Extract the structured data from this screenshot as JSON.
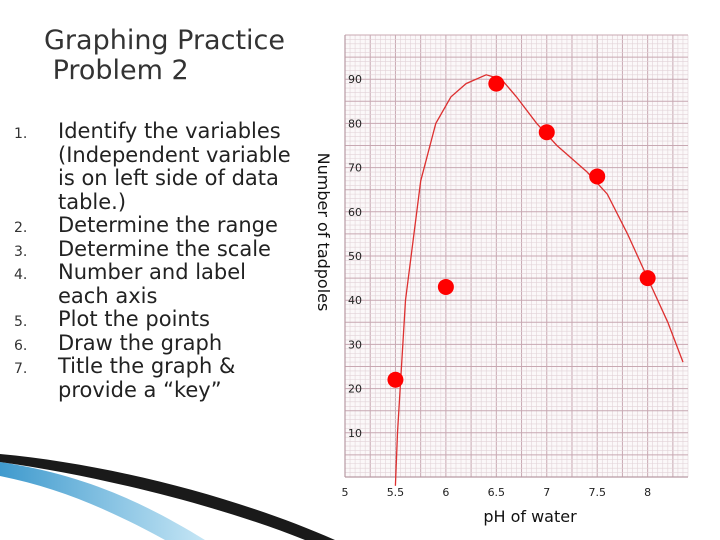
{
  "slide": {
    "title": "Graphing Practice\n Problem 2",
    "steps": [
      {
        "num": "1.",
        "text": "Identify the variables (Independent variable is on left side of data table.)"
      },
      {
        "num": "2.",
        "text": "Determine the range"
      },
      {
        "num": "3.",
        "text": "Determine the scale"
      },
      {
        "num": "4.",
        "text": "Number and label each axis"
      },
      {
        "num": "5.",
        "text": "Plot the points"
      },
      {
        "num": "6.",
        "text": "Draw the graph"
      },
      {
        "num": "7.",
        "text": "Title the graph & provide a “key”"
      }
    ]
  },
  "chart_data": {
    "type": "scatter",
    "title": "",
    "xlabel": "pH of water",
    "ylabel": "Number of tadpoles",
    "xlim": [
      5,
      8.4
    ],
    "ylim": [
      0,
      100
    ],
    "x_ticks": [
      "5",
      "5.5",
      "6",
      "6.5",
      "7",
      "7.5",
      "8"
    ],
    "y_ticks": [
      "10",
      "20",
      "30",
      "40",
      "50",
      "60",
      "70",
      "80",
      "90"
    ],
    "points": [
      {
        "x": 5.5,
        "y": 22
      },
      {
        "x": 6.0,
        "y": 43
      },
      {
        "x": 6.5,
        "y": 89
      },
      {
        "x": 7.0,
        "y": 78
      },
      {
        "x": 7.5,
        "y": 68
      },
      {
        "x": 8.0,
        "y": 45
      }
    ],
    "curve": [
      {
        "x": 5.5,
        "y": -2
      },
      {
        "x": 5.52,
        "y": 10
      },
      {
        "x": 5.6,
        "y": 40
      },
      {
        "x": 5.75,
        "y": 67
      },
      {
        "x": 5.9,
        "y": 80
      },
      {
        "x": 6.05,
        "y": 86
      },
      {
        "x": 6.2,
        "y": 89
      },
      {
        "x": 6.4,
        "y": 91
      },
      {
        "x": 6.55,
        "y": 90
      },
      {
        "x": 6.7,
        "y": 86
      },
      {
        "x": 6.9,
        "y": 80
      },
      {
        "x": 7.1,
        "y": 75
      },
      {
        "x": 7.4,
        "y": 69
      },
      {
        "x": 7.6,
        "y": 64
      },
      {
        "x": 7.8,
        "y": 55
      },
      {
        "x": 8.0,
        "y": 45
      },
      {
        "x": 8.2,
        "y": 35
      },
      {
        "x": 8.35,
        "y": 26
      }
    ],
    "grid": true,
    "colors": {
      "point": "#ff0000",
      "curve": "#dd3030",
      "grid_major": "#c8a8b2",
      "grid_minor": "#e2d2d7"
    }
  }
}
